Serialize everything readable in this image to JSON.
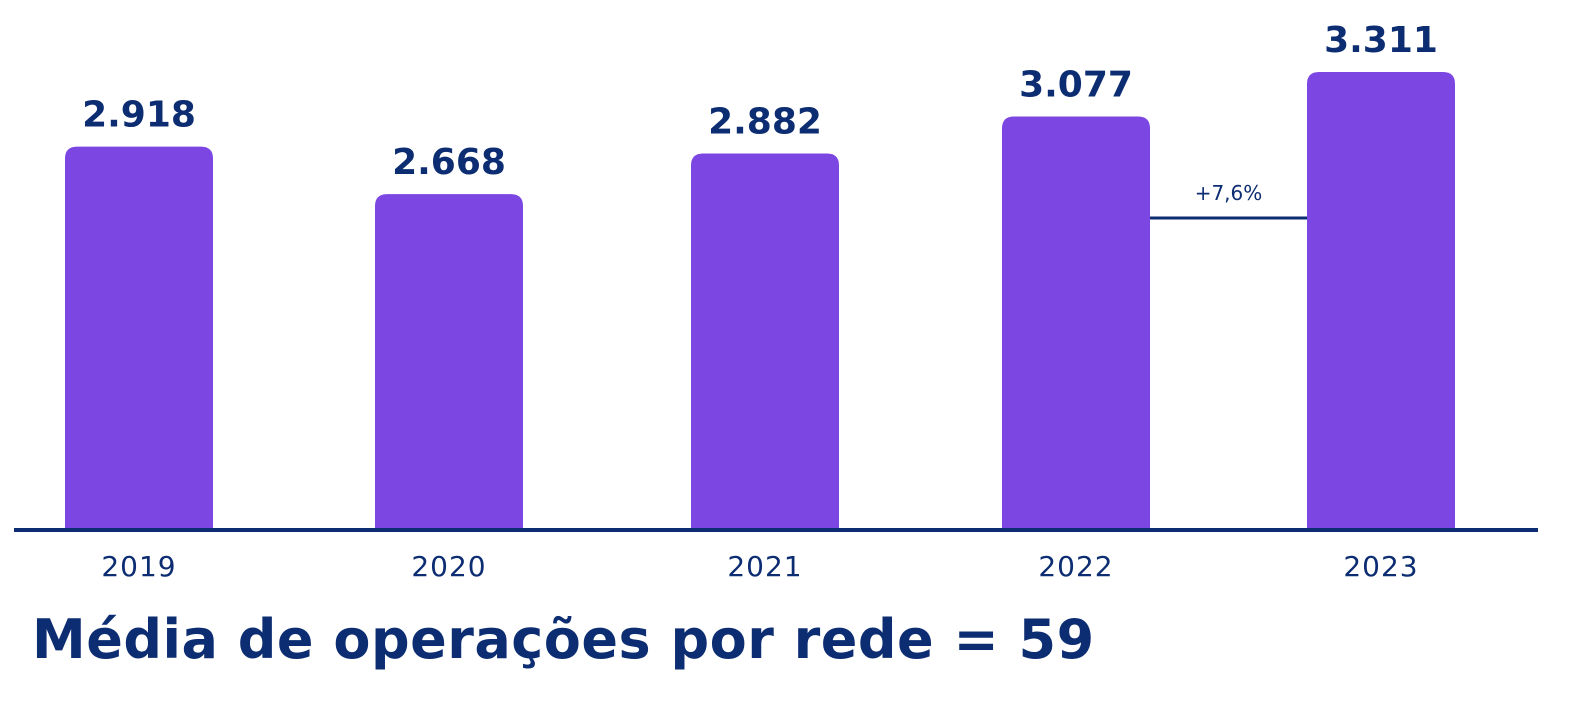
{
  "chart_data": {
    "type": "bar",
    "categories": [
      "2019",
      "2020",
      "2021",
      "2022",
      "2023"
    ],
    "values": [
      2918,
      2668,
      2882,
      3077,
      3311
    ],
    "value_labels": [
      "2.918",
      "2.668",
      "2.882",
      "3.077",
      "3.311"
    ],
    "ylim": [
      900,
      3311
    ],
    "grid": false,
    "annotation": {
      "from": "2022",
      "to": "2023",
      "text": "+7,6%"
    }
  },
  "colors": {
    "bar": "#7b46e2",
    "text": "#0d2d72",
    "axis": "#0d2d72"
  },
  "footer": {
    "text": "Média de operações por rede = 59"
  }
}
